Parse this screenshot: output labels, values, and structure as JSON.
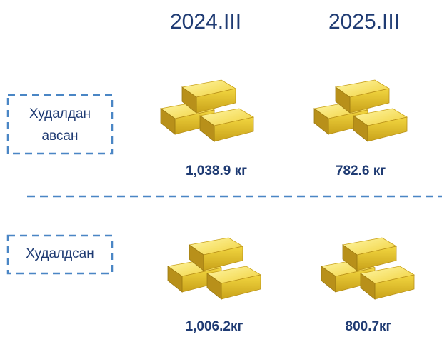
{
  "columns": [
    "2024.III",
    "2025.III"
  ],
  "rows": [
    {
      "label": [
        "Худалдан",
        "авсан"
      ],
      "values": [
        "1,038.9 кг",
        "782.6 кг"
      ]
    },
    {
      "label": [
        "Худалдсан"
      ],
      "values": [
        "1,006.2кг",
        "800.7кг"
      ]
    }
  ]
}
